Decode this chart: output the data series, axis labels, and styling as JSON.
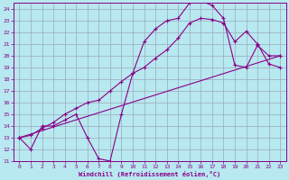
{
  "xlabel": "Windchill (Refroidissement éolien,°C)",
  "bg_color": "#b8e8f0",
  "line_color": "#880088",
  "grid_color": "#99aabb",
  "xlim": [
    -0.5,
    23.5
  ],
  "ylim": [
    11,
    24.5
  ],
  "xticks": [
    0,
    1,
    2,
    3,
    4,
    5,
    6,
    7,
    8,
    9,
    10,
    11,
    12,
    13,
    14,
    15,
    16,
    17,
    18,
    19,
    20,
    21,
    22,
    23
  ],
  "yticks": [
    11,
    12,
    13,
    14,
    15,
    16,
    17,
    18,
    19,
    20,
    21,
    22,
    23,
    24
  ],
  "series1_x": [
    0,
    1,
    2,
    3,
    4,
    5,
    6,
    7,
    8,
    9,
    10,
    11,
    12,
    13,
    14,
    15,
    16,
    17,
    18,
    19,
    20,
    21,
    22,
    23
  ],
  "series1_y": [
    13,
    12,
    14,
    14,
    14.5,
    15,
    13,
    11.2,
    11,
    15,
    18.5,
    21.2,
    22.3,
    23.0,
    23.2,
    24.5,
    24.7,
    24.3,
    23.2,
    19.2,
    19.0,
    20.9,
    20.0,
    20.0
  ],
  "series2_x": [
    0,
    1,
    2,
    3,
    4,
    5,
    6,
    7,
    8,
    9,
    10,
    11,
    12,
    13,
    14,
    15,
    16,
    17,
    18,
    19,
    20,
    21,
    22,
    23
  ],
  "series2_y": [
    13,
    13.2,
    13.8,
    14.3,
    15,
    15.5,
    16,
    16.2,
    17,
    17.8,
    18.5,
    19.0,
    19.8,
    20.5,
    21.5,
    22.8,
    23.2,
    23.1,
    22.8,
    21.2,
    22.1,
    21.0,
    19.3,
    19.0
  ],
  "series3_x": [
    0,
    23
  ],
  "series3_y": [
    13,
    20
  ]
}
